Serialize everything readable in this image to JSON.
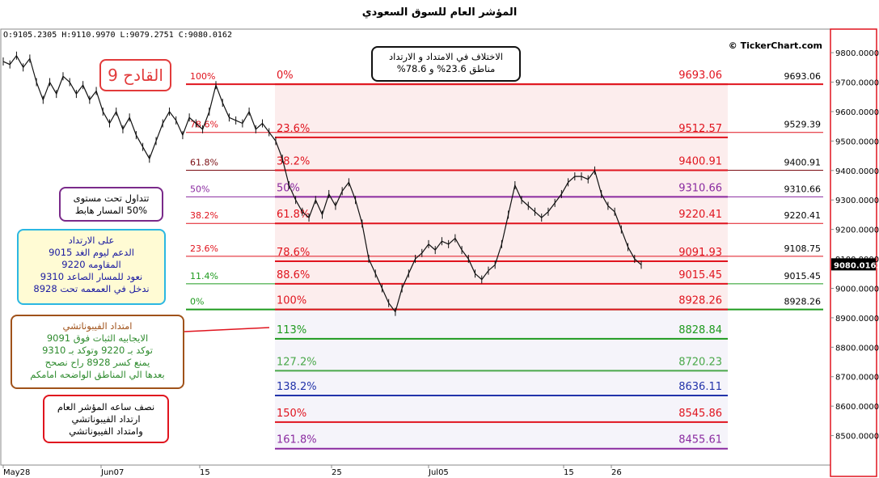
{
  "page": {
    "title": "المؤشر العام للسوق السعودي",
    "ohlc": "O:9105.2305  H:9110.9970  L:9079.2751  C:9080.0162",
    "brand": "© TickerChart.com"
  },
  "annotations": {
    "title_box": [
      "الاختلاف في الامتداد و الارتداد",
      "مناطق 23.6% و 78.6%"
    ],
    "hammer_box": "القادح 9",
    "level50_box": [
      "تتداول تحت مستوى",
      "50% المسار هابط"
    ],
    "sr_box": [
      "على الارتداد",
      "الدعم ليوم الغد 9015",
      "المقاومه 9220",
      "نعود للمسار الصاعد 9310",
      "ندخل في العمعمه  تحت 8928"
    ],
    "ext_box": [
      "امتداد الفيبوناتشي",
      "الايجابيه الثبات فوق 9091",
      "توكد بـ 9220 وتوكد بـ 9310",
      "يمنع كسر 8928 راح نصحح",
      "بعدها الي المناطق الواضحه امامكم"
    ],
    "note_box": [
      "نصف ساعه المؤشر العام",
      "ارتداد الفيبوناتشي",
      "وامتداد الفيبوناتشي"
    ]
  },
  "colors": {
    "red": "#e0141e",
    "green": "#1e9a1e",
    "purple": "#8a2aa0",
    "blue": "#2233aa",
    "dark_red": "#7a0d12",
    "shade": "#fbe8e8"
  },
  "chart_data": {
    "type": "line",
    "title": "المؤشر العام للسوق السعودي",
    "ylim": [
      8400,
      9880
    ],
    "y_ticks": [
      "9800.0000",
      "9700.0000",
      "9600.0000",
      "9500.0000",
      "9400.0000",
      "9300.0000",
      "9200.0000",
      "9100.0000",
      "9000.0000",
      "8900.0000",
      "8800.0000",
      "8700.0000",
      "8600.0000",
      "8500.0000"
    ],
    "x_ticks": [
      "May28",
      "Jun07",
      "15",
      "25",
      "Jul05",
      "15",
      "26"
    ],
    "last_price": "9080.0162",
    "series": [
      {
        "values": [
          9770,
          9760,
          9790,
          9750,
          9780,
          9700,
          9640,
          9700,
          9660,
          9720,
          9700,
          9660,
          9690,
          9640,
          9670,
          9600,
          9560,
          9600,
          9540,
          9580,
          9520,
          9480,
          9440,
          9500,
          9560,
          9600,
          9570,
          9520,
          9580,
          9560,
          9540,
          9600,
          9690,
          9630,
          9580,
          9570,
          9560,
          9600,
          9540,
          9560,
          9530,
          9500,
          9440,
          9350,
          9300,
          9260,
          9240,
          9300,
          9250,
          9320,
          9280,
          9330,
          9360,
          9300,
          9220,
          9100,
          9050,
          9000,
          8950,
          8920,
          9000,
          9050,
          9100,
          9120,
          9150,
          9130,
          9160,
          9150,
          9170,
          9130,
          9100,
          9050,
          9030,
          9060,
          9080,
          9150,
          9250,
          9350,
          9300,
          9280,
          9260,
          9240,
          9260,
          9290,
          9320,
          9360,
          9380,
          9380,
          9370,
          9400,
          9320,
          9280,
          9260,
          9200,
          9140,
          9100,
          9080
        ]
      }
    ],
    "retracement_left": [
      {
        "pct": "100%",
        "value": 9693.06
      },
      {
        "pct": "78.6%",
        "value": 9529.39
      },
      {
        "pct": "61.8%",
        "value": 9400.91
      },
      {
        "pct": "50%",
        "value": 9310.66
      },
      {
        "pct": "38.2%",
        "value": 9220.41
      },
      {
        "pct": "23.6%",
        "value": 9108.75
      },
      {
        "pct": "11.4%",
        "value": 9015.45
      },
      {
        "pct": "0%",
        "value": 8928.26
      }
    ],
    "extension_levels": [
      {
        "pct": "0%",
        "value": "9693.06",
        "y": 9693.06,
        "color": "#e0141e"
      },
      {
        "pct": "23.6%",
        "value": "9512.57",
        "y": 9512.57,
        "color": "#e0141e"
      },
      {
        "pct": "38.2%",
        "value": "9400.91",
        "y": 9400.91,
        "color": "#e0141e"
      },
      {
        "pct": "50%",
        "value": "9310.66",
        "y": 9310.66,
        "color": "#8a2aa0"
      },
      {
        "pct": "61.8%",
        "value": "9220.41",
        "y": 9220.41,
        "color": "#e0141e"
      },
      {
        "pct": "78.6%",
        "value": "9091.93",
        "y": 9091.93,
        "color": "#e0141e"
      },
      {
        "pct": "88.6%",
        "value": "9015.45",
        "y": 9015.45,
        "color": "#e0141e"
      },
      {
        "pct": "100%",
        "value": "8928.26",
        "y": 8928.26,
        "color": "#e0141e"
      },
      {
        "pct": "113%",
        "value": "8828.84",
        "y": 8828.84,
        "color": "#1e9a1e"
      },
      {
        "pct": "127.2%",
        "value": "8720.23",
        "y": 8720.23,
        "color": "#4aa84a"
      },
      {
        "pct": "138.2%",
        "value": "8636.11",
        "y": 8636.11,
        "color": "#2233aa"
      },
      {
        "pct": "150%",
        "value": "8545.86",
        "y": 8545.86,
        "color": "#e0141e"
      },
      {
        "pct": "161.8%",
        "value": "8455.61",
        "y": 8455.61,
        "color": "#8a2aa0"
      }
    ],
    "right_values": [
      "9693.06",
      "9529.39",
      "9400.91",
      "9310.66",
      "9220.41",
      "9108.75",
      "9015.45",
      "8928.26"
    ]
  }
}
